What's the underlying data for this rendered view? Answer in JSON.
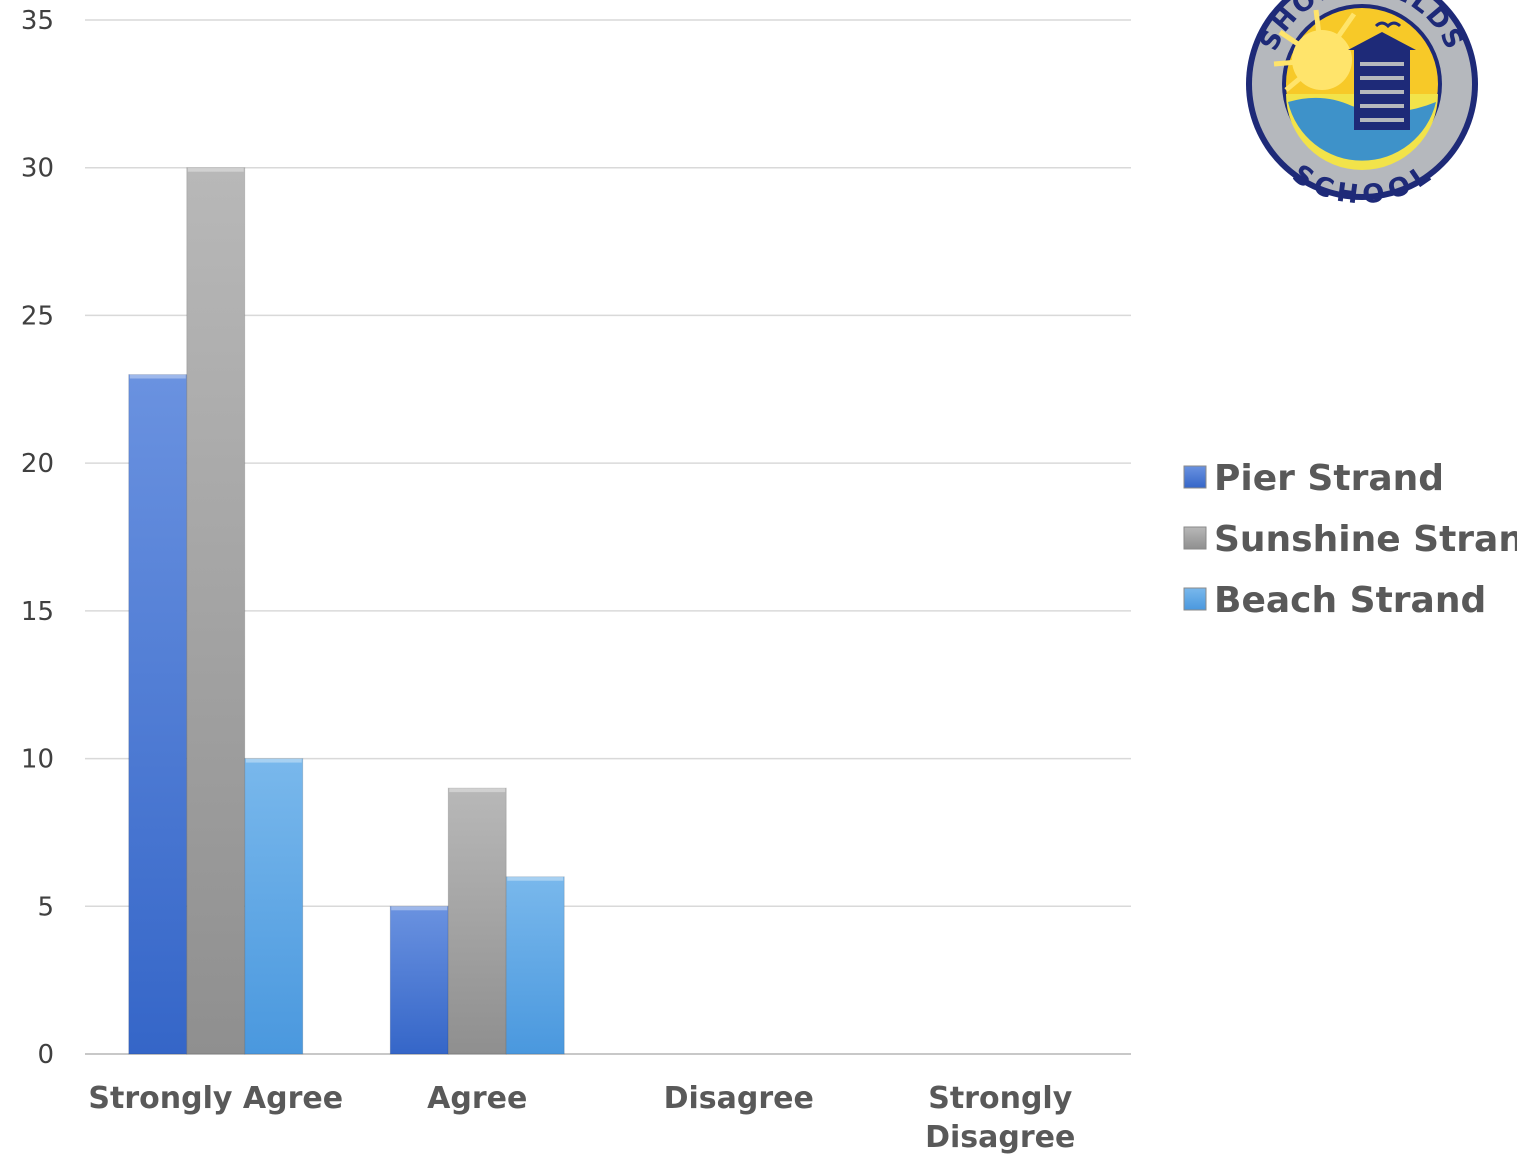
{
  "chart_data": {
    "type": "bar",
    "categories": [
      "Strongly Agree",
      "Agree",
      "Disagree",
      "Strongly\nDisagree"
    ],
    "series": [
      {
        "name": "Pier Strand",
        "values": [
          23,
          5,
          0,
          0
        ],
        "color": "#3f74d3"
      },
      {
        "name": "Sunshine Strand",
        "values": [
          30,
          9,
          0,
          0
        ],
        "color": "#a6a6a6"
      },
      {
        "name": "Beach Strand",
        "values": [
          10,
          6,
          0,
          0
        ],
        "color": "#5aa9e8"
      }
    ],
    "ylim": [
      0,
      35
    ],
    "yticks": [
      0,
      5,
      10,
      15,
      20,
      25,
      30,
      35
    ],
    "grid": true,
    "legend_position": "right"
  },
  "logo": {
    "icon": "school-crest-icon",
    "top_text": "SHOREFIELDS",
    "bottom_text": "SCHOOL"
  }
}
